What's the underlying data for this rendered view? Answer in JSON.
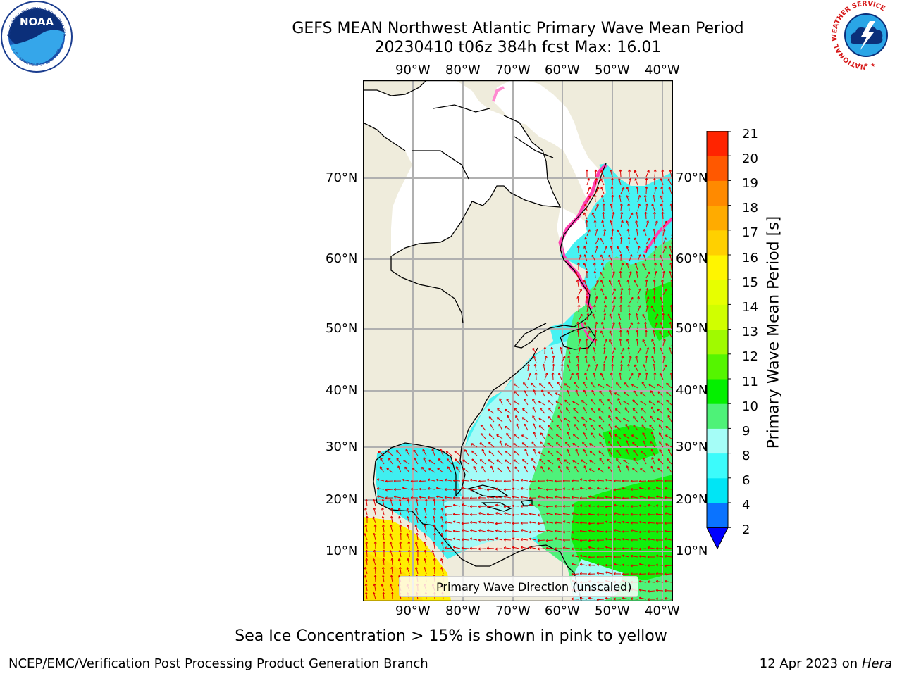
{
  "title": {
    "line1": "GEFS MEAN Northwest Atlantic Primary Wave Mean Period",
    "line2": "20230410 t06z 384h fcst   Max: 16.01"
  },
  "logos": {
    "noaa_text": "NOAA",
    "noaa_ring_top": "NATIONAL OCEANIC AND ATMOSPHERIC ADMINISTRATION",
    "noaa_ring_bottom": "U.S. DEPARTMENT OF COMMERCE",
    "nws_ring": "NATIONAL WEATHER SERVICE"
  },
  "map": {
    "lon_labels": [
      "90°W",
      "80°W",
      "70°W",
      "60°W",
      "50°W",
      "40°W"
    ],
    "lat_labels": [
      "70°N",
      "60°N",
      "50°N",
      "40°N",
      "30°N",
      "20°N",
      "10°N"
    ],
    "colors": {
      "land": "#efecdc",
      "ocean_cyan": "#46f2f2",
      "ocean_light": "#a4fbf7",
      "ocean_green": "#4ef27a",
      "ocean_bright": "#11f00c",
      "ice": "#ffffff",
      "arrow": "#e00000",
      "yellow": "#ffee00"
    }
  },
  "legend": {
    "label": "Primary Wave Direction (unscaled)"
  },
  "colorbar": {
    "label": "Primary Wave Mean Period [s]",
    "ticks": [
      "2",
      "4",
      "6",
      "8",
      "9",
      "10",
      "11",
      "12",
      "13",
      "14",
      "15",
      "16",
      "17",
      "18",
      "19",
      "20",
      "21"
    ],
    "colors": [
      "#0a73ff",
      "#00e5f5",
      "#3cfbfb",
      "#a5fdf7",
      "#4ef278",
      "#04f000",
      "#55f500",
      "#a0fa00",
      "#d0ff00",
      "#e7ff00",
      "#fff500",
      "#ffd000",
      "#ffab00",
      "#ff8a00",
      "#ff5800",
      "#ff2400"
    ],
    "extend_color": "#0000ff"
  },
  "footer": {
    "note": "Sea Ice Concentration > 15% is shown in pink to yellow",
    "left": "NCEP/EMC/Verification Post Processing Product Generation Branch",
    "right_date": "12 Apr 2023 on ",
    "right_host": "Hera"
  }
}
